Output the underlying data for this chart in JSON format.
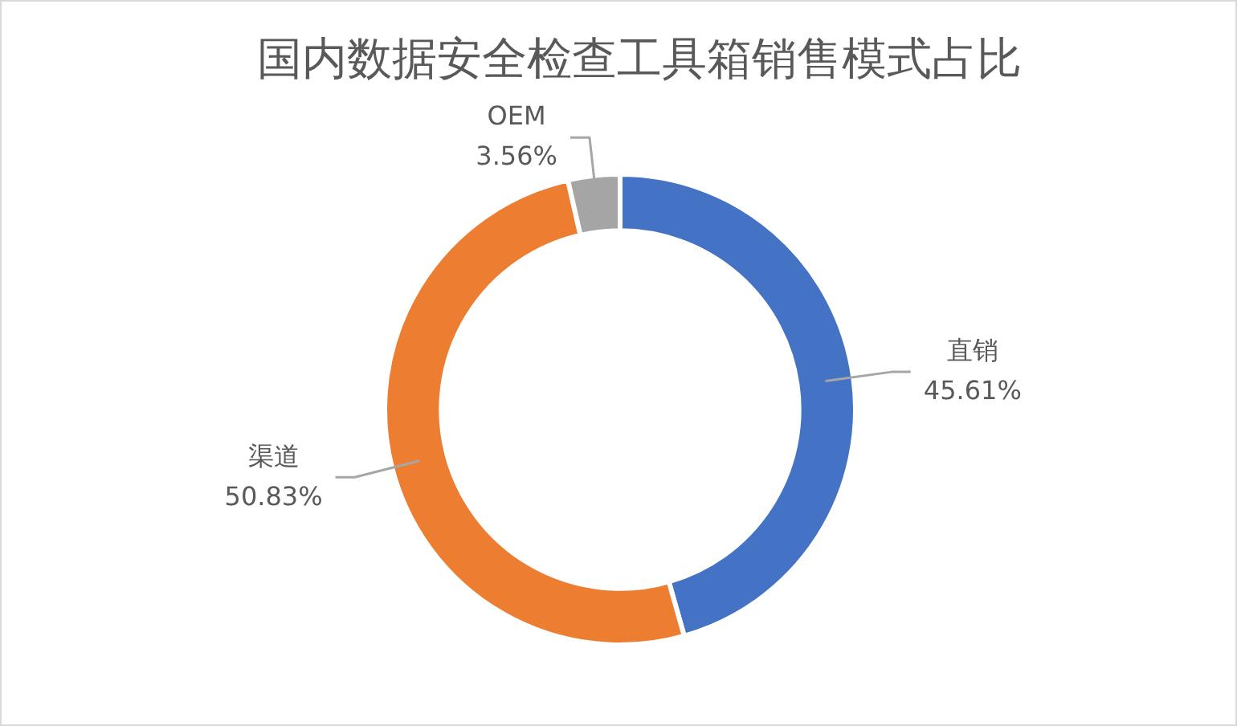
{
  "chart_data": {
    "type": "donut",
    "title": "国内数据安全检查工具箱销售模式占比",
    "categories": [
      "直销",
      "渠道",
      "OEM"
    ],
    "values": [
      45.61,
      50.83,
      3.56
    ],
    "colors": [
      "#4472c4",
      "#ed7d31",
      "#a5a5a5"
    ],
    "value_labels": [
      "45.61%",
      "50.83%",
      "3.56%"
    ]
  }
}
